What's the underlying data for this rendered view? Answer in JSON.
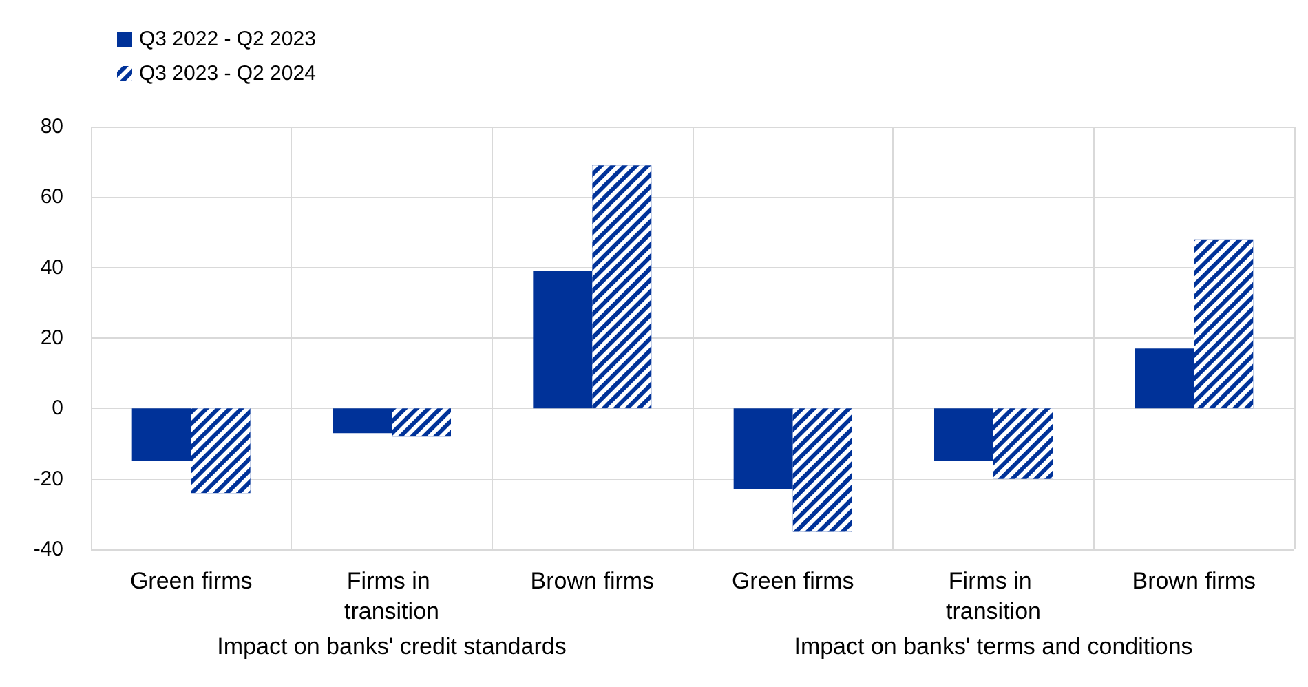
{
  "chart_data": {
    "type": "bar",
    "categories": [
      "Green firms",
      "Firms in transition",
      "Brown firms",
      "Green firms",
      "Firms in transition",
      "Brown firms"
    ],
    "series": [
      {
        "name": "Q3 2022 - Q2 2023",
        "color": "#003299",
        "values": [
          -15,
          -7,
          39,
          -23,
          -15,
          17
        ]
      },
      {
        "name": "Q3 2023 - Q2 2024",
        "color": "#003299",
        "values": [
          -24,
          -8,
          69,
          -35,
          -20,
          48
        ]
      }
    ],
    "ylim": [
      -40,
      80
    ],
    "yticks": [
      -40,
      -20,
      0,
      20,
      40,
      60,
      80
    ],
    "annotations": [
      "Impact on banks' credit standards",
      "Impact on banks' terms and conditions"
    ],
    "grid": true,
    "legend": "top left"
  }
}
